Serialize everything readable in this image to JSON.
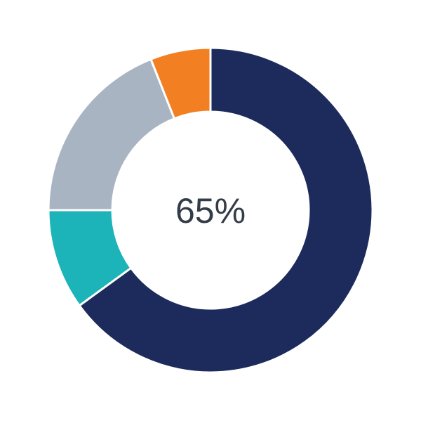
{
  "chart_data": {
    "type": "pie",
    "variant": "donut",
    "center_label": "65%",
    "slices": [
      {
        "value": 65,
        "color": "#1c2b5b"
      },
      {
        "value": 10,
        "color": "#1cb4b8"
      },
      {
        "value": 19,
        "color": "#a9b4c2"
      },
      {
        "value": 6,
        "color": "#f28022"
      }
    ],
    "start": "top",
    "direction": "clockwise",
    "legend": "none"
  }
}
